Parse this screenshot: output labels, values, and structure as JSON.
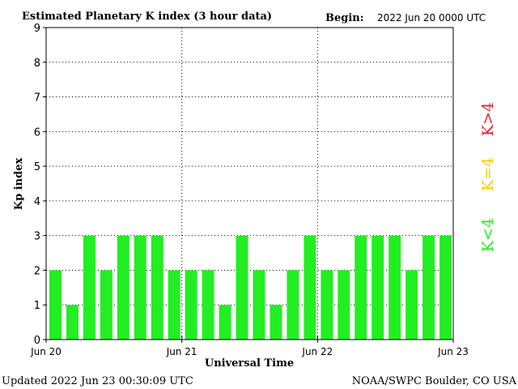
{
  "chart_data": {
    "type": "bar",
    "title": "Estimated Planetary K index (3 hour data)",
    "begin_label": "Begin:",
    "begin_value": "2022 Jun 20 0000 UTC",
    "ylabel": "Kp index",
    "xlabel": "Universal Time",
    "ylim": [
      0,
      9
    ],
    "yticks": [
      "0",
      "1",
      "2",
      "3",
      "4",
      "5",
      "6",
      "7",
      "8",
      "9"
    ],
    "x_tick_labels": [
      "Jun 20",
      "Jun 21",
      "Jun 22",
      "Jun 23"
    ],
    "values": [
      2,
      1,
      3,
      2,
      3,
      3,
      3,
      2,
      2,
      2,
      1,
      3,
      2,
      1,
      2,
      3,
      2,
      2,
      3,
      3,
      3,
      2,
      3,
      3
    ],
    "bar_color": "#22ee22",
    "grid": true,
    "legend": [
      {
        "label": "K<4",
        "color": "#22ee22"
      },
      {
        "label": "K=4",
        "color": "#ffcc00"
      },
      {
        "label": "K>4",
        "color": "#ee2222"
      }
    ]
  },
  "footer": {
    "updated": "Updated 2022 Jun 23 00:30:09 UTC",
    "credit": "NOAA/SWPC Boulder, CO USA"
  }
}
